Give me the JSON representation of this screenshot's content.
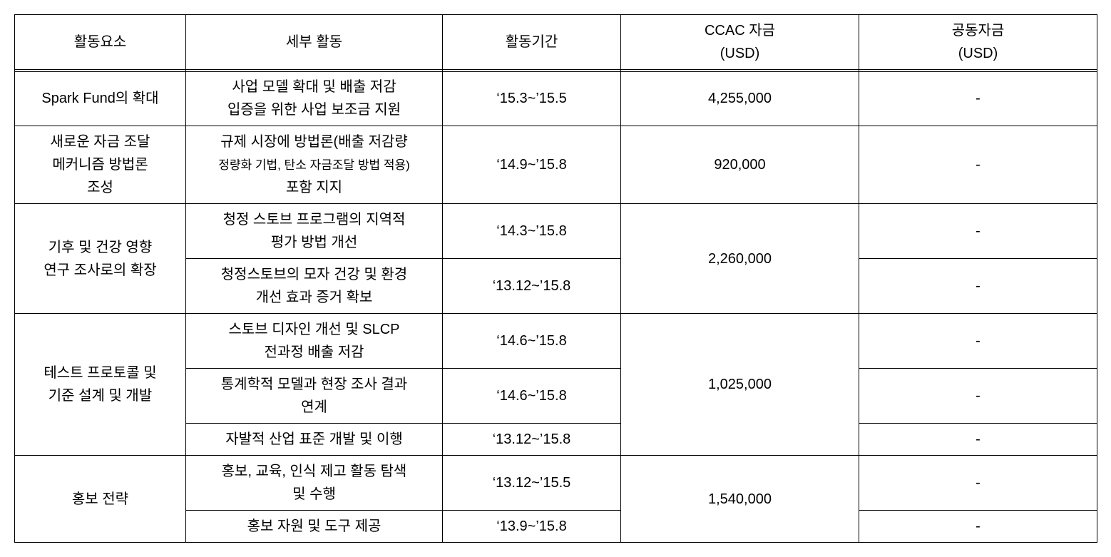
{
  "table": {
    "headers": {
      "col1": "활동요소",
      "col2": "세부 활동",
      "col3": "활동기간",
      "col4_line1": "CCAC 자금",
      "col4_line2": "(USD)",
      "col5_line1": "공동자금",
      "col5_line2": "(USD)"
    },
    "rows": {
      "r1": {
        "activity": "Spark Fund의 확대",
        "detail_l1": "사업 모델 확대 및 배출 저감",
        "detail_l2": "입증을 위한 사업 보조금 지원",
        "period": "‘15.3~’15.5",
        "ccac": "4,255,000",
        "joint": "-"
      },
      "r2": {
        "activity_l1": "새로운 자금 조달",
        "activity_l2": "메커니즘 방법론",
        "activity_l3": "조성",
        "detail_l1": "규제 시장에 방법론(배출 저감량",
        "detail_l2": "정량화 기법, 탄소 자금조달 방법 적용)",
        "detail_l3": "포함 지지",
        "period": "‘14.9~’15.8",
        "ccac": "920,000",
        "joint": "-"
      },
      "r3": {
        "activity_l1": "기후 및 건강 영향",
        "activity_l2": "연구 조사로의 확장",
        "sub1_detail_l1": "청정 스토브 프로그램의 지역적",
        "sub1_detail_l2": "평가 방법 개선",
        "sub1_period": "‘14.3~’15.8",
        "sub2_detail_l1": "청정스토브의 모자 건강 및 환경",
        "sub2_detail_l2": "개선 효과 증거 확보",
        "sub2_period": "‘13.12~’15.8",
        "ccac": "2,260,000",
        "sub1_joint": "-",
        "sub2_joint": "-"
      },
      "r4": {
        "activity_l1": "테스트 프로토콜 및",
        "activity_l2": "기준 설계 및 개발",
        "sub1_detail_l1": "스토브 디자인 개선 및 SLCP",
        "sub1_detail_l2": "전과정 배출 저감",
        "sub1_period": "‘14.6~’15.8",
        "sub2_detail_l1": "통계학적 모델과 현장 조사 결과",
        "sub2_detail_l2": "연계",
        "sub2_period": "‘14.6~’15.8",
        "sub3_detail": "자발적 산업 표준 개발 및 이행",
        "sub3_period": "‘13.12~’15.8",
        "ccac": "1,025,000",
        "sub1_joint": "-",
        "sub2_joint": "-",
        "sub3_joint": "-"
      },
      "r5": {
        "activity": "홍보 전략",
        "sub1_detail_l1": "홍보, 교육, 인식 제고 활동 탐색",
        "sub1_detail_l2": "및 수행",
        "sub1_period": "‘13.12~’15.5",
        "sub2_detail": "홍보 자원 및 도구 제공",
        "sub2_period": "‘13.9~’15.8",
        "ccac": "1,540,000",
        "sub1_joint": "-",
        "sub2_joint": "-"
      }
    }
  }
}
